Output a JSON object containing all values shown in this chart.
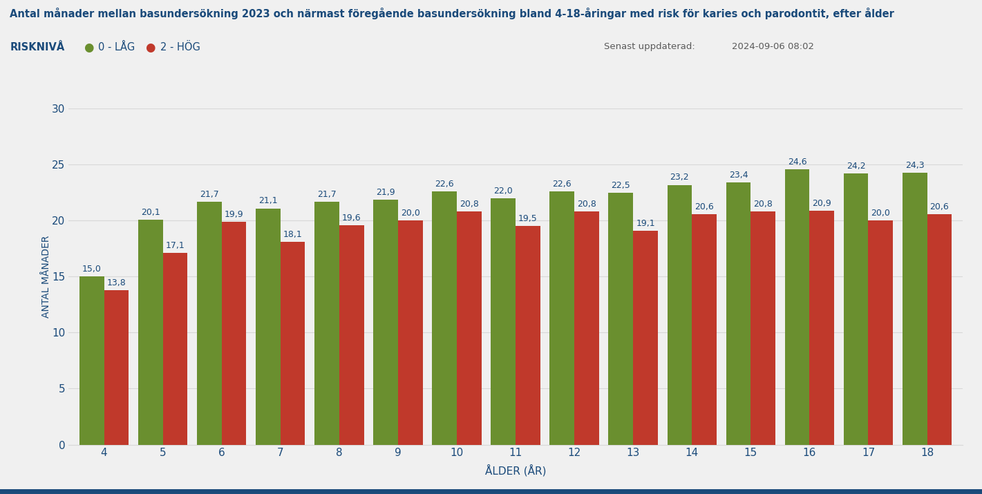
{
  "title": "Antal månader mellan basundersökning 2023 och närmast föregående basundersökning bland 4-18-åringar med risk för karies och parodontit, efter ålder",
  "subtitle_label": "RISKNIVÅ",
  "legend_low": "0 - LÅG",
  "legend_high": "2 - HÖG",
  "updated_label": "Senast uppdaterad:",
  "updated_value": "2024-09-06 08:02",
  "xlabel": "ÅLDER (ÅR)",
  "ylabel": "ANTAL MÅNADER",
  "ages": [
    4,
    5,
    6,
    7,
    8,
    9,
    10,
    11,
    12,
    13,
    14,
    15,
    16,
    17,
    18
  ],
  "low_values": [
    15.0,
    20.1,
    21.7,
    21.1,
    21.7,
    21.9,
    22.6,
    22.0,
    22.6,
    22.5,
    23.2,
    23.4,
    24.6,
    24.2,
    24.3
  ],
  "high_values": [
    13.8,
    17.1,
    19.9,
    18.1,
    19.6,
    20.0,
    20.8,
    19.5,
    20.8,
    19.1,
    20.6,
    20.8,
    20.9,
    20.0,
    20.6
  ],
  "color_low": "#6a8f2f",
  "color_high": "#c0392b",
  "yticks": [
    0,
    5,
    10,
    15,
    20,
    25,
    30
  ],
  "ylim": [
    0,
    30
  ],
  "background_color": "#f0f0f0",
  "title_color": "#1a4a7a",
  "axis_label_color": "#1a4a7a",
  "tick_color": "#1a4a7a",
  "legend_text_color": "#1a4a7a",
  "update_text_color": "#5a5a5a",
  "bar_label_fontsize": 9.0,
  "bar_width": 0.42,
  "grid_color": "#d8d8d8",
  "bottom_line_color": "#1a4a7a"
}
